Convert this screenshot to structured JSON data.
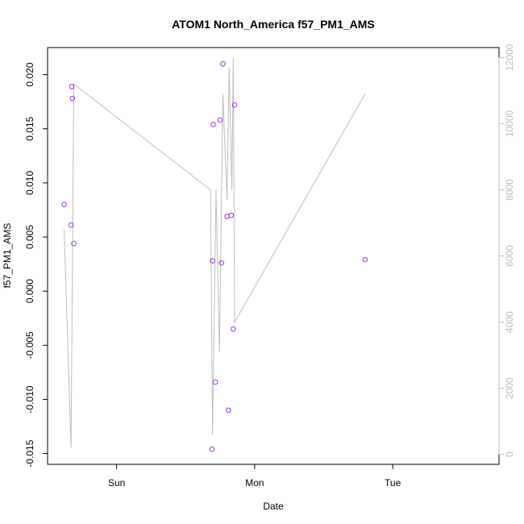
{
  "chart_data": {
    "type": "scatter",
    "title": "ATOM1 North_America f57_PM1_AMS",
    "xlabel": "Date",
    "ylabel": "f57_PM1_AMS",
    "x_ticks": [
      "Sun",
      "Mon",
      "Tue"
    ],
    "x_tick_days": [
      1,
      2,
      3
    ],
    "xlim_days": [
      0.5,
      3.77
    ],
    "ylim": [
      -0.016,
      0.0225
    ],
    "y_ticks": [
      -0.015,
      -0.01,
      -0.005,
      0.0,
      0.005,
      0.01,
      0.015,
      0.02
    ],
    "y_tick_labels": [
      "-0.015",
      "-0.010",
      "-0.005",
      "0.000",
      "0.005",
      "0.010",
      "0.015",
      "0.020"
    ],
    "y2lim": [
      -300,
      12300
    ],
    "y2_ticks": [
      0,
      2000,
      4000,
      6000,
      8000,
      10000,
      12000
    ],
    "y2_tick_labels": [
      "0",
      "2000",
      "4000",
      "6000",
      "8000",
      "10000",
      "12000"
    ],
    "grid": false,
    "series": [
      {
        "kind": "points",
        "axis": "left",
        "color": "#9b30ff",
        "points": [
          {
            "day": 0.62,
            "y": 0.008
          },
          {
            "day": 0.67,
            "y": 0.0061
          },
          {
            "day": 0.675,
            "y": 0.0189
          },
          {
            "day": 0.68,
            "y": 0.0178
          },
          {
            "day": 0.69,
            "y": 0.0044
          },
          {
            "day": 1.69,
            "y": -0.0146
          },
          {
            "day": 1.695,
            "y": 0.0028
          },
          {
            "day": 1.7,
            "y": 0.0154
          },
          {
            "day": 1.715,
            "y": -0.0084
          },
          {
            "day": 1.75,
            "y": 0.0158
          },
          {
            "day": 1.76,
            "y": 0.0026
          },
          {
            "day": 1.77,
            "y": 0.021
          },
          {
            "day": 1.8,
            "y": 0.0069
          },
          {
            "day": 1.81,
            "y": -0.011
          },
          {
            "day": 1.83,
            "y": 0.007
          },
          {
            "day": 1.845,
            "y": -0.0035
          },
          {
            "day": 1.855,
            "y": 0.0172
          },
          {
            "day": 2.8,
            "y": 0.0029
          }
        ]
      },
      {
        "kind": "line",
        "axis": "right",
        "color": "#bebebe",
        "points": [
          {
            "day": 0.62,
            "y2": 6800
          },
          {
            "day": 0.67,
            "y2": 200
          },
          {
            "day": 0.69,
            "y2": 11200
          },
          {
            "day": 1.68,
            "y2": 8000
          },
          {
            "day": 1.695,
            "y2": 600
          },
          {
            "day": 1.72,
            "y2": 8000
          },
          {
            "day": 1.745,
            "y2": 3100
          },
          {
            "day": 1.77,
            "y2": 10900
          },
          {
            "day": 1.8,
            "y2": 7700
          },
          {
            "day": 1.815,
            "y2": 11700
          },
          {
            "day": 1.835,
            "y2": 8000
          },
          {
            "day": 1.845,
            "y2": 12000
          },
          {
            "day": 1.855,
            "y2": 4000
          },
          {
            "day": 2.8,
            "y2": 10900
          }
        ]
      }
    ]
  }
}
